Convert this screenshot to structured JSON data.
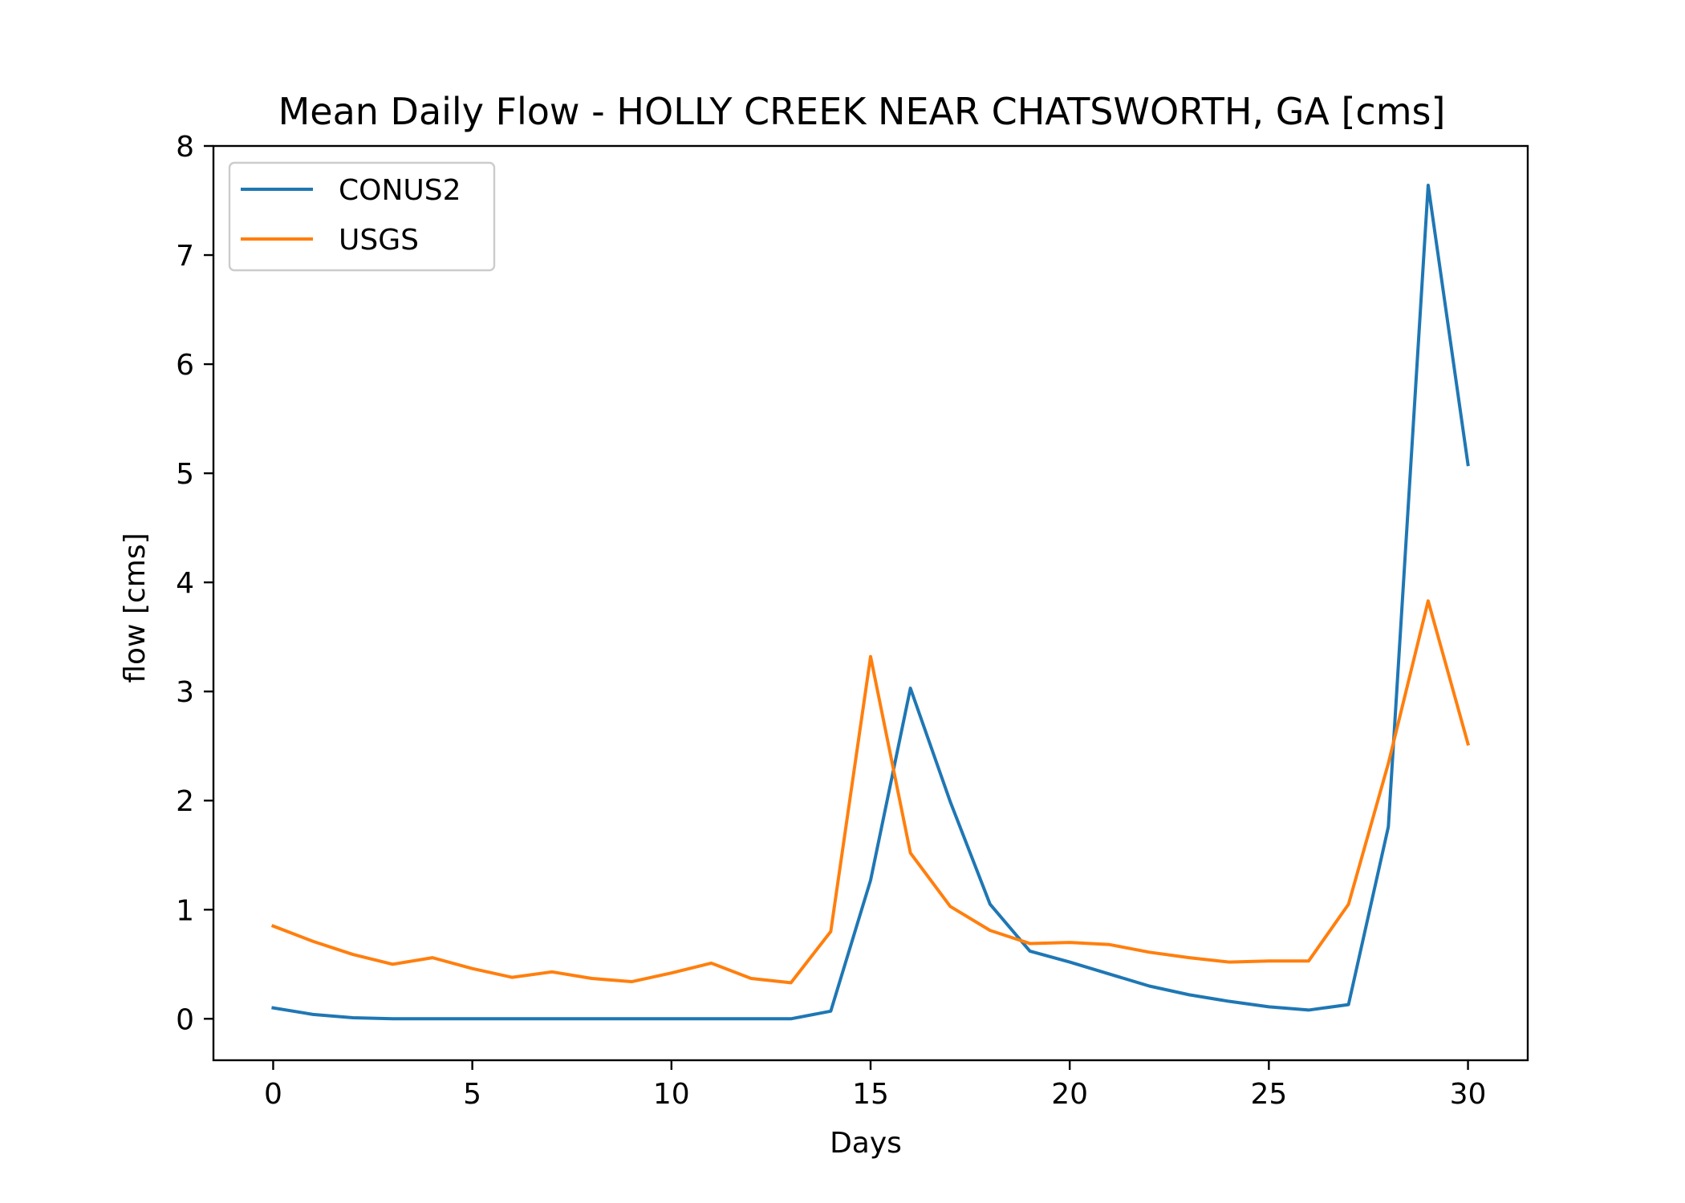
{
  "chart_data": {
    "type": "line",
    "title": "Mean Daily Flow - HOLLY CREEK NEAR CHATSWORTH, GA [cms]",
    "xlabel": "Days",
    "ylabel": "flow [cms]",
    "xlim": [
      -1.5,
      31.5
    ],
    "ylim": [
      -0.38,
      8
    ],
    "xticks": [
      0,
      5,
      10,
      15,
      20,
      25,
      30
    ],
    "yticks": [
      0,
      1,
      2,
      3,
      4,
      5,
      6,
      7,
      8
    ],
    "grid": false,
    "legend": "top-left",
    "x": [
      0,
      1,
      2,
      3,
      4,
      5,
      6,
      7,
      8,
      9,
      10,
      11,
      12,
      13,
      14,
      15,
      16,
      17,
      18,
      19,
      20,
      21,
      22,
      23,
      24,
      25,
      26,
      27,
      28,
      29,
      30
    ],
    "series": [
      {
        "name": "CONUS2",
        "color": "#1f77b4",
        "values": [
          0.1,
          0.04,
          0.01,
          0.0,
          0.0,
          0.0,
          0.0,
          0.0,
          0.0,
          0.0,
          0.0,
          0.0,
          0.0,
          0.0,
          0.07,
          1.27,
          3.03,
          1.99,
          1.05,
          0.62,
          0.52,
          0.41,
          0.3,
          0.22,
          0.16,
          0.11,
          0.08,
          0.13,
          1.76,
          7.64,
          5.08
        ]
      },
      {
        "name": "USGS",
        "color": "#ff7f0e",
        "values": [
          0.85,
          0.71,
          0.59,
          0.5,
          0.56,
          0.46,
          0.38,
          0.43,
          0.37,
          0.34,
          0.42,
          0.51,
          0.37,
          0.33,
          0.8,
          3.32,
          1.52,
          1.03,
          0.81,
          0.69,
          0.7,
          0.68,
          0.61,
          0.56,
          0.52,
          0.53,
          0.53,
          1.05,
          2.34,
          3.83,
          2.52
        ]
      }
    ]
  }
}
